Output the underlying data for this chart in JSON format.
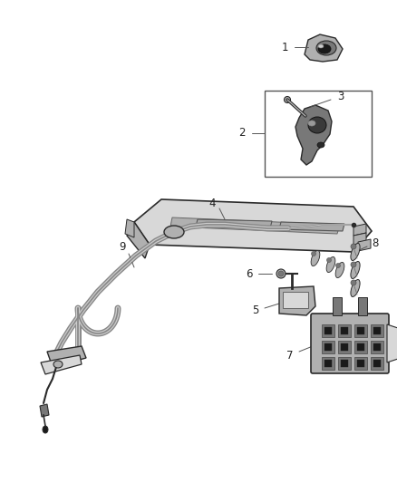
{
  "background": "#ffffff",
  "fig_width": 4.38,
  "fig_height": 5.33,
  "dpi": 100,
  "edge_color": "#2a2a2a",
  "fill_light": "#d8d8d8",
  "fill_mid": "#b0b0b0",
  "fill_dark": "#787878",
  "fill_black": "#1a1a1a",
  "label_color": "#222222",
  "label_fontsize": 8.5,
  "leader_color": "#555555",
  "leader_lw": 0.7
}
